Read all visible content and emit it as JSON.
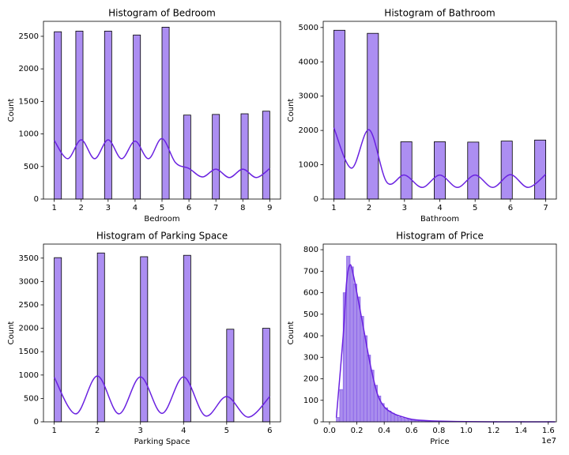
{
  "chart_data": [
    {
      "type": "histogram",
      "title": "Histogram of Bedroom",
      "xlabel": "Bedroom",
      "ylabel": "Count",
      "bins": [
        1,
        1.267,
        1.533,
        1.8,
        2.067,
        2.333,
        2.6,
        2.867,
        3.133,
        3.4,
        3.667,
        3.933,
        4.2,
        4.467,
        4.733,
        5,
        5.267,
        5.533,
        5.8,
        6.067,
        6.333,
        6.6,
        6.867,
        7.133,
        7.4,
        7.667,
        7.933,
        8.2,
        8.467,
        8.733,
        9
      ],
      "values": [
        2570,
        0,
        0,
        2580,
        0,
        0,
        0,
        2580,
        0,
        0,
        0,
        2520,
        0,
        0,
        0,
        2640,
        0,
        0,
        1290,
        0,
        0,
        0,
        1300,
        0,
        0,
        0,
        1310,
        0,
        0,
        1350
      ],
      "color": "#ac8ef2",
      "edgecolor": "#000000",
      "kde": {
        "color": "#6a22e0",
        "x": [
          1,
          1.5,
          2,
          2.5,
          3,
          3.5,
          4,
          4.5,
          5,
          5.5,
          6,
          6.5,
          7,
          7.5,
          8,
          8.5,
          9
        ],
        "values": [
          900,
          620,
          910,
          620,
          910,
          620,
          890,
          620,
          930,
          560,
          470,
          340,
          460,
          330,
          460,
          330,
          470
        ]
      },
      "xlim": [
        0.6,
        9.4
      ],
      "xticks": [
        1,
        2,
        3,
        4,
        5,
        6,
        7,
        8,
        9
      ],
      "ylim": [
        0,
        2730
      ],
      "yticks": [
        0,
        500,
        1000,
        1500,
        2000,
        2500
      ]
    },
    {
      "type": "histogram",
      "title": "Histogram of Bathroom",
      "xlabel": "Bathroom",
      "ylabel": "Count",
      "bins": [
        1,
        1.316,
        1.632,
        1.947,
        2.263,
        2.579,
        2.895,
        3.211,
        3.526,
        3.842,
        4.158,
        4.474,
        4.789,
        5.105,
        5.421,
        5.737,
        6.053,
        6.368,
        6.684,
        7
      ],
      "values": [
        4920,
        0,
        0,
        4830,
        0,
        0,
        1670,
        0,
        0,
        1670,
        0,
        0,
        1660,
        0,
        0,
        1690,
        0,
        0,
        1720
      ],
      "color": "#ac8ef2",
      "edgecolor": "#000000",
      "kde": {
        "color": "#6a22e0",
        "x": [
          1,
          1.5,
          2,
          2.5,
          3,
          3.5,
          4,
          4.5,
          5,
          5.5,
          6,
          6.5,
          7
        ],
        "values": [
          2080,
          900,
          2020,
          490,
          700,
          340,
          700,
          340,
          700,
          340,
          710,
          340,
          720
        ]
      },
      "xlim": [
        0.7,
        7.3
      ],
      "xticks": [
        1,
        2,
        3,
        4,
        5,
        6,
        7
      ],
      "ylim": [
        0,
        5180
      ],
      "yticks": [
        0,
        1000,
        2000,
        3000,
        4000,
        5000
      ]
    },
    {
      "type": "histogram",
      "title": "Histogram of Parking Space",
      "xlabel": "Parking Space",
      "ylabel": "Count",
      "bins": [
        1,
        1.167,
        1.333,
        1.5,
        1.667,
        1.833,
        2,
        2.167,
        2.333,
        2.5,
        2.667,
        2.833,
        3,
        3.167,
        3.333,
        3.5,
        3.667,
        3.833,
        4,
        4.167,
        4.333,
        4.5,
        4.667,
        4.833,
        5,
        5.167,
        5.333,
        5.5,
        5.667,
        5.833,
        6
      ],
      "values": [
        3510,
        0,
        0,
        0,
        0,
        0,
        3610,
        0,
        0,
        0,
        0,
        0,
        3530,
        0,
        0,
        0,
        0,
        0,
        3560,
        0,
        0,
        0,
        0,
        0,
        1980,
        0,
        0,
        0,
        0,
        2000
      ],
      "color": "#ac8ef2",
      "edgecolor": "#000000",
      "kde": {
        "color": "#6a22e0",
        "x": [
          1,
          1.5,
          2,
          2.5,
          3,
          3.5,
          4,
          4.5,
          5,
          5.5,
          6
        ],
        "values": [
          950,
          170,
          980,
          170,
          960,
          180,
          960,
          130,
          540,
          100,
          540
        ]
      },
      "xlim": [
        0.75,
        6.25
      ],
      "xticks": [
        1,
        2,
        3,
        4,
        5,
        6
      ],
      "ylim": [
        0,
        3800
      ],
      "yticks": [
        0,
        500,
        1000,
        1500,
        2000,
        2500,
        3000,
        3500
      ]
    },
    {
      "type": "histogram",
      "title": "Histogram of Price",
      "xlabel": "Price",
      "ylabel": "Count",
      "x_offset_label": "1e7",
      "bins": [
        500000,
        750000,
        1000000,
        1250000,
        1500000,
        1750000,
        2000000,
        2250000,
        2500000,
        2750000,
        3000000,
        3250000,
        3500000,
        3750000,
        4000000,
        4250000,
        4500000,
        4750000,
        5000000,
        5250000,
        5500000,
        5750000,
        6000000,
        6250000,
        6500000,
        6750000,
        7000000,
        7250000,
        7500000,
        7750000,
        8000000,
        8250000,
        8500000,
        8750000,
        9000000,
        9250000,
        9500000,
        9750000,
        10000000,
        10250000,
        10500000,
        10750000,
        11000000,
        11250000,
        11500000,
        11750000,
        12000000,
        12250000,
        12500000,
        12750000,
        13000000,
        13250000,
        13500000,
        13750000,
        14000000,
        14250000,
        14500000,
        14750000,
        15000000,
        15250000,
        15500000,
        15750000,
        16000000,
        16250000,
        16500000
      ],
      "values": [
        20,
        150,
        600,
        770,
        720,
        640,
        580,
        490,
        400,
        310,
        240,
        170,
        120,
        85,
        65,
        50,
        40,
        30,
        22,
        16,
        12,
        9,
        7,
        6,
        5,
        4,
        3,
        3,
        2,
        2,
        1,
        1,
        1,
        1,
        1,
        0,
        1,
        0,
        0,
        0,
        0,
        0,
        0,
        0,
        0,
        0,
        1,
        0,
        0,
        0,
        0,
        0,
        0,
        0,
        1,
        0,
        0,
        0,
        0,
        0,
        0,
        0,
        1,
        0
      ],
      "color": "#a98ded",
      "edgecolor": "#8a63e8",
      "kde": {
        "color": "#6a22e0",
        "x": [
          500000,
          1000000,
          1250000,
          1500000,
          1750000,
          2000000,
          2500000,
          3000000,
          3500000,
          4000000,
          4500000,
          5000000,
          6000000,
          7000000,
          8000000,
          10000000,
          12000000,
          14000000,
          16500000
        ],
        "values": [
          20,
          400,
          650,
          730,
          680,
          600,
          430,
          260,
          130,
          70,
          45,
          30,
          12,
          6,
          3,
          1,
          0,
          0,
          0
        ]
      },
      "xlim": [
        -460000,
        16590000
      ],
      "xticks": [
        {
          "value": 0,
          "label": "0.0"
        },
        {
          "value": 2000000,
          "label": "0.2"
        },
        {
          "value": 4000000,
          "label": "0.4"
        },
        {
          "value": 6000000,
          "label": "0.6"
        },
        {
          "value": 8000000,
          "label": "0.8"
        },
        {
          "value": 10000000,
          "label": "1.0"
        },
        {
          "value": 12000000,
          "label": "1.2"
        },
        {
          "value": 14000000,
          "label": "1.4"
        },
        {
          "value": 16000000,
          "label": "1.6"
        }
      ],
      "ylim": [
        0,
        826
      ],
      "yticks": [
        0,
        100,
        200,
        300,
        400,
        500,
        600,
        700,
        800
      ]
    }
  ]
}
